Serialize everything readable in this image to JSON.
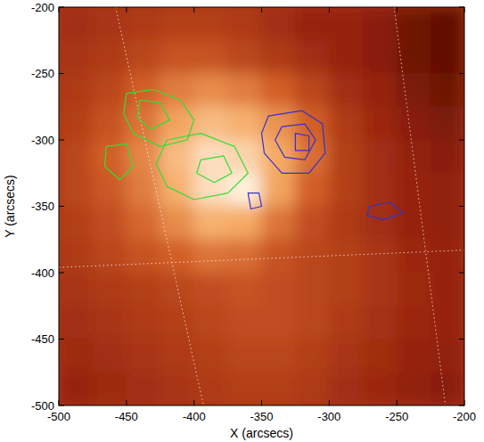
{
  "chart_data": {
    "type": "image",
    "x_label": "X (arcsecs)",
    "y_label": "Y (arcsecs)",
    "xlim": [
      -500,
      -200
    ],
    "ylim": [
      -500,
      -200
    ],
    "xticks": [
      -500,
      -450,
      -400,
      -350,
      -300,
      -250,
      -200
    ],
    "yticks": [
      -500,
      -450,
      -400,
      -350,
      -300,
      -250,
      -200
    ],
    "grid": true,
    "grid_lines": [
      {
        "x": [
          -458,
          -393
        ],
        "y": [
          -200,
          -500
        ]
      },
      {
        "x": [
          -252,
          -214
        ],
        "y": [
          -200,
          -500
        ]
      },
      {
        "x": [
          -500,
          -200
        ],
        "y": [
          -396,
          -383
        ]
      }
    ],
    "cell_size": 25,
    "cells": [
      [
        0.35,
        0.38,
        0.4,
        0.42,
        0.42,
        0.4,
        0.35,
        0.3,
        0.3,
        0.25,
        0.15,
        0.1
      ],
      [
        0.38,
        0.4,
        0.45,
        0.5,
        0.5,
        0.45,
        0.4,
        0.35,
        0.3,
        0.25,
        0.15,
        0.1
      ],
      [
        0.4,
        0.45,
        0.55,
        0.65,
        0.7,
        0.65,
        0.55,
        0.45,
        0.35,
        0.3,
        0.2,
        0.15
      ],
      [
        0.42,
        0.5,
        0.62,
        0.78,
        0.85,
        0.82,
        0.72,
        0.55,
        0.4,
        0.32,
        0.25,
        0.2
      ],
      [
        0.45,
        0.55,
        0.68,
        0.85,
        0.95,
        0.92,
        0.8,
        0.6,
        0.42,
        0.35,
        0.28,
        0.25
      ],
      [
        0.45,
        0.52,
        0.65,
        0.82,
        0.95,
        1.0,
        0.78,
        0.55,
        0.42,
        0.35,
        0.3,
        0.28
      ],
      [
        0.42,
        0.48,
        0.58,
        0.7,
        0.82,
        0.8,
        0.62,
        0.48,
        0.4,
        0.35,
        0.3,
        0.28
      ],
      [
        0.4,
        0.45,
        0.5,
        0.55,
        0.62,
        0.6,
        0.5,
        0.45,
        0.42,
        0.38,
        0.32,
        0.3
      ],
      [
        0.38,
        0.4,
        0.42,
        0.45,
        0.48,
        0.5,
        0.48,
        0.45,
        0.42,
        0.38,
        0.33,
        0.3
      ],
      [
        0.35,
        0.38,
        0.4,
        0.42,
        0.45,
        0.48,
        0.48,
        0.45,
        0.4,
        0.36,
        0.32,
        0.3
      ],
      [
        0.33,
        0.35,
        0.38,
        0.4,
        0.42,
        0.45,
        0.45,
        0.42,
        0.38,
        0.34,
        0.3,
        0.28
      ],
      [
        0.3,
        0.33,
        0.35,
        0.38,
        0.4,
        0.42,
        0.42,
        0.4,
        0.35,
        0.32,
        0.28,
        0.25
      ]
    ],
    "series": [
      {
        "color": "#33dd33",
        "contours": [
          {
            "x": [
              -450,
              -430,
              -410,
              -400,
              -405,
              -425,
              -445,
              -452
            ],
            "y": [
              -265,
              -262,
              -270,
              -285,
              -300,
              -305,
              -295,
              -280
            ]
          },
          {
            "x": [
              -420,
              -395,
              -370,
              -360,
              -375,
              -400,
              -420,
              -428
            ],
            "y": [
              -300,
              -295,
              -305,
              -325,
              -340,
              -345,
              -335,
              -318
            ]
          },
          {
            "x": [
              -440,
              -425,
              -418,
              -432,
              -442
            ],
            "y": [
              -270,
              -272,
              -285,
              -292,
              -283
            ]
          },
          {
            "x": [
              -465,
              -450,
              -445,
              -455,
              -466
            ],
            "y": [
              -305,
              -303,
              -320,
              -330,
              -320
            ]
          },
          {
            "x": [
              -395,
              -378,
              -372,
              -385,
              -398
            ],
            "y": [
              -315,
              -312,
              -325,
              -332,
              -325
            ]
          }
        ]
      },
      {
        "color": "#3333cc",
        "contours": [
          {
            "x": [
              -345,
              -320,
              -305,
              -303,
              -315,
              -335,
              -348,
              -350
            ],
            "y": [
              -282,
              -278,
              -288,
              -310,
              -325,
              -325,
              -310,
              -295
            ]
          },
          {
            "x": [
              -335,
              -318,
              -310,
              -318,
              -333,
              -340
            ],
            "y": [
              -290,
              -288,
              -300,
              -315,
              -313,
              -300
            ]
          },
          {
            "x": [
              -325,
              -315,
              -315,
              -325
            ],
            "y": [
              -295,
              -297,
              -308,
              -308
            ]
          },
          {
            "x": [
              -270,
              -255,
              -245,
              -260,
              -272
            ],
            "y": [
              -350,
              -347,
              -355,
              -360,
              -357
            ]
          },
          {
            "x": [
              -360,
              -352,
              -350,
              -358
            ],
            "y": [
              -340,
              -340,
              -350,
              -352
            ]
          }
        ]
      }
    ]
  }
}
